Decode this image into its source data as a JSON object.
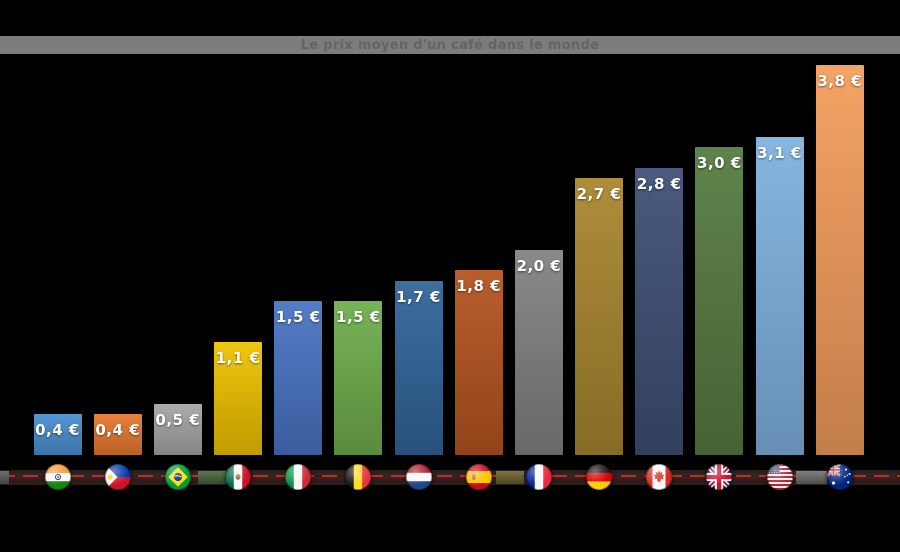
{
  "title_bar": {
    "text": "Le prix moyen d'un café dans le monde",
    "background": "#7c7c7c",
    "text_color": "#646464"
  },
  "chart_data": {
    "type": "bar",
    "title": "Le prix moyen d'un café dans le monde",
    "currency": "EUR",
    "unit_symbol": "€",
    "value_format": "comma-decimal",
    "categories": [
      "India",
      "Philippines",
      "Brazil",
      "Mexico",
      "Italy",
      "Belgium",
      "Netherlands",
      "Spain",
      "France",
      "Germany",
      "Canada",
      "United Kingdom",
      "United States",
      "Australia"
    ],
    "flag_codes": [
      "in",
      "ph",
      "br",
      "mx",
      "it",
      "be",
      "nl",
      "es",
      "fr",
      "de",
      "ca",
      "gb",
      "us",
      "au"
    ],
    "values": [
      0.4,
      0.4,
      0.5,
      1.1,
      1.5,
      1.5,
      1.7,
      1.8,
      2.0,
      2.7,
      2.8,
      3.0,
      3.1,
      3.8
    ],
    "labels": [
      "0,4 €",
      "0,4 €",
      "0,5 €",
      "1,1 €",
      "1,5 €",
      "1,5 €",
      "1,7 €",
      "1,8 €",
      "2,0 €",
      "2,7 €",
      "2,8 €",
      "3,0 €",
      "3,1 €",
      "3,8 €"
    ],
    "bar_colors": [
      "#4a90d0",
      "#e8792e",
      "#a6a6a6",
      "#eec200",
      "#4a74c4",
      "#6fae4c",
      "#31659a",
      "#b5541f",
      "#828282",
      "#a9862f",
      "#3e5076",
      "#567b40",
      "#80b2e0",
      "#f49d5c"
    ],
    "xlabel": "",
    "ylabel": "",
    "ylim": [
      0,
      4
    ],
    "gridlines": false,
    "legend": "none",
    "background": "#000000"
  },
  "axis_strip": {
    "dashed_line_color": "#b33227",
    "edge_line_color": "#421616",
    "band_color": "#242020",
    "segment_colors": [
      "#5a5a5a",
      "#46663c",
      "#6f6127",
      "#6e6e6e"
    ]
  }
}
